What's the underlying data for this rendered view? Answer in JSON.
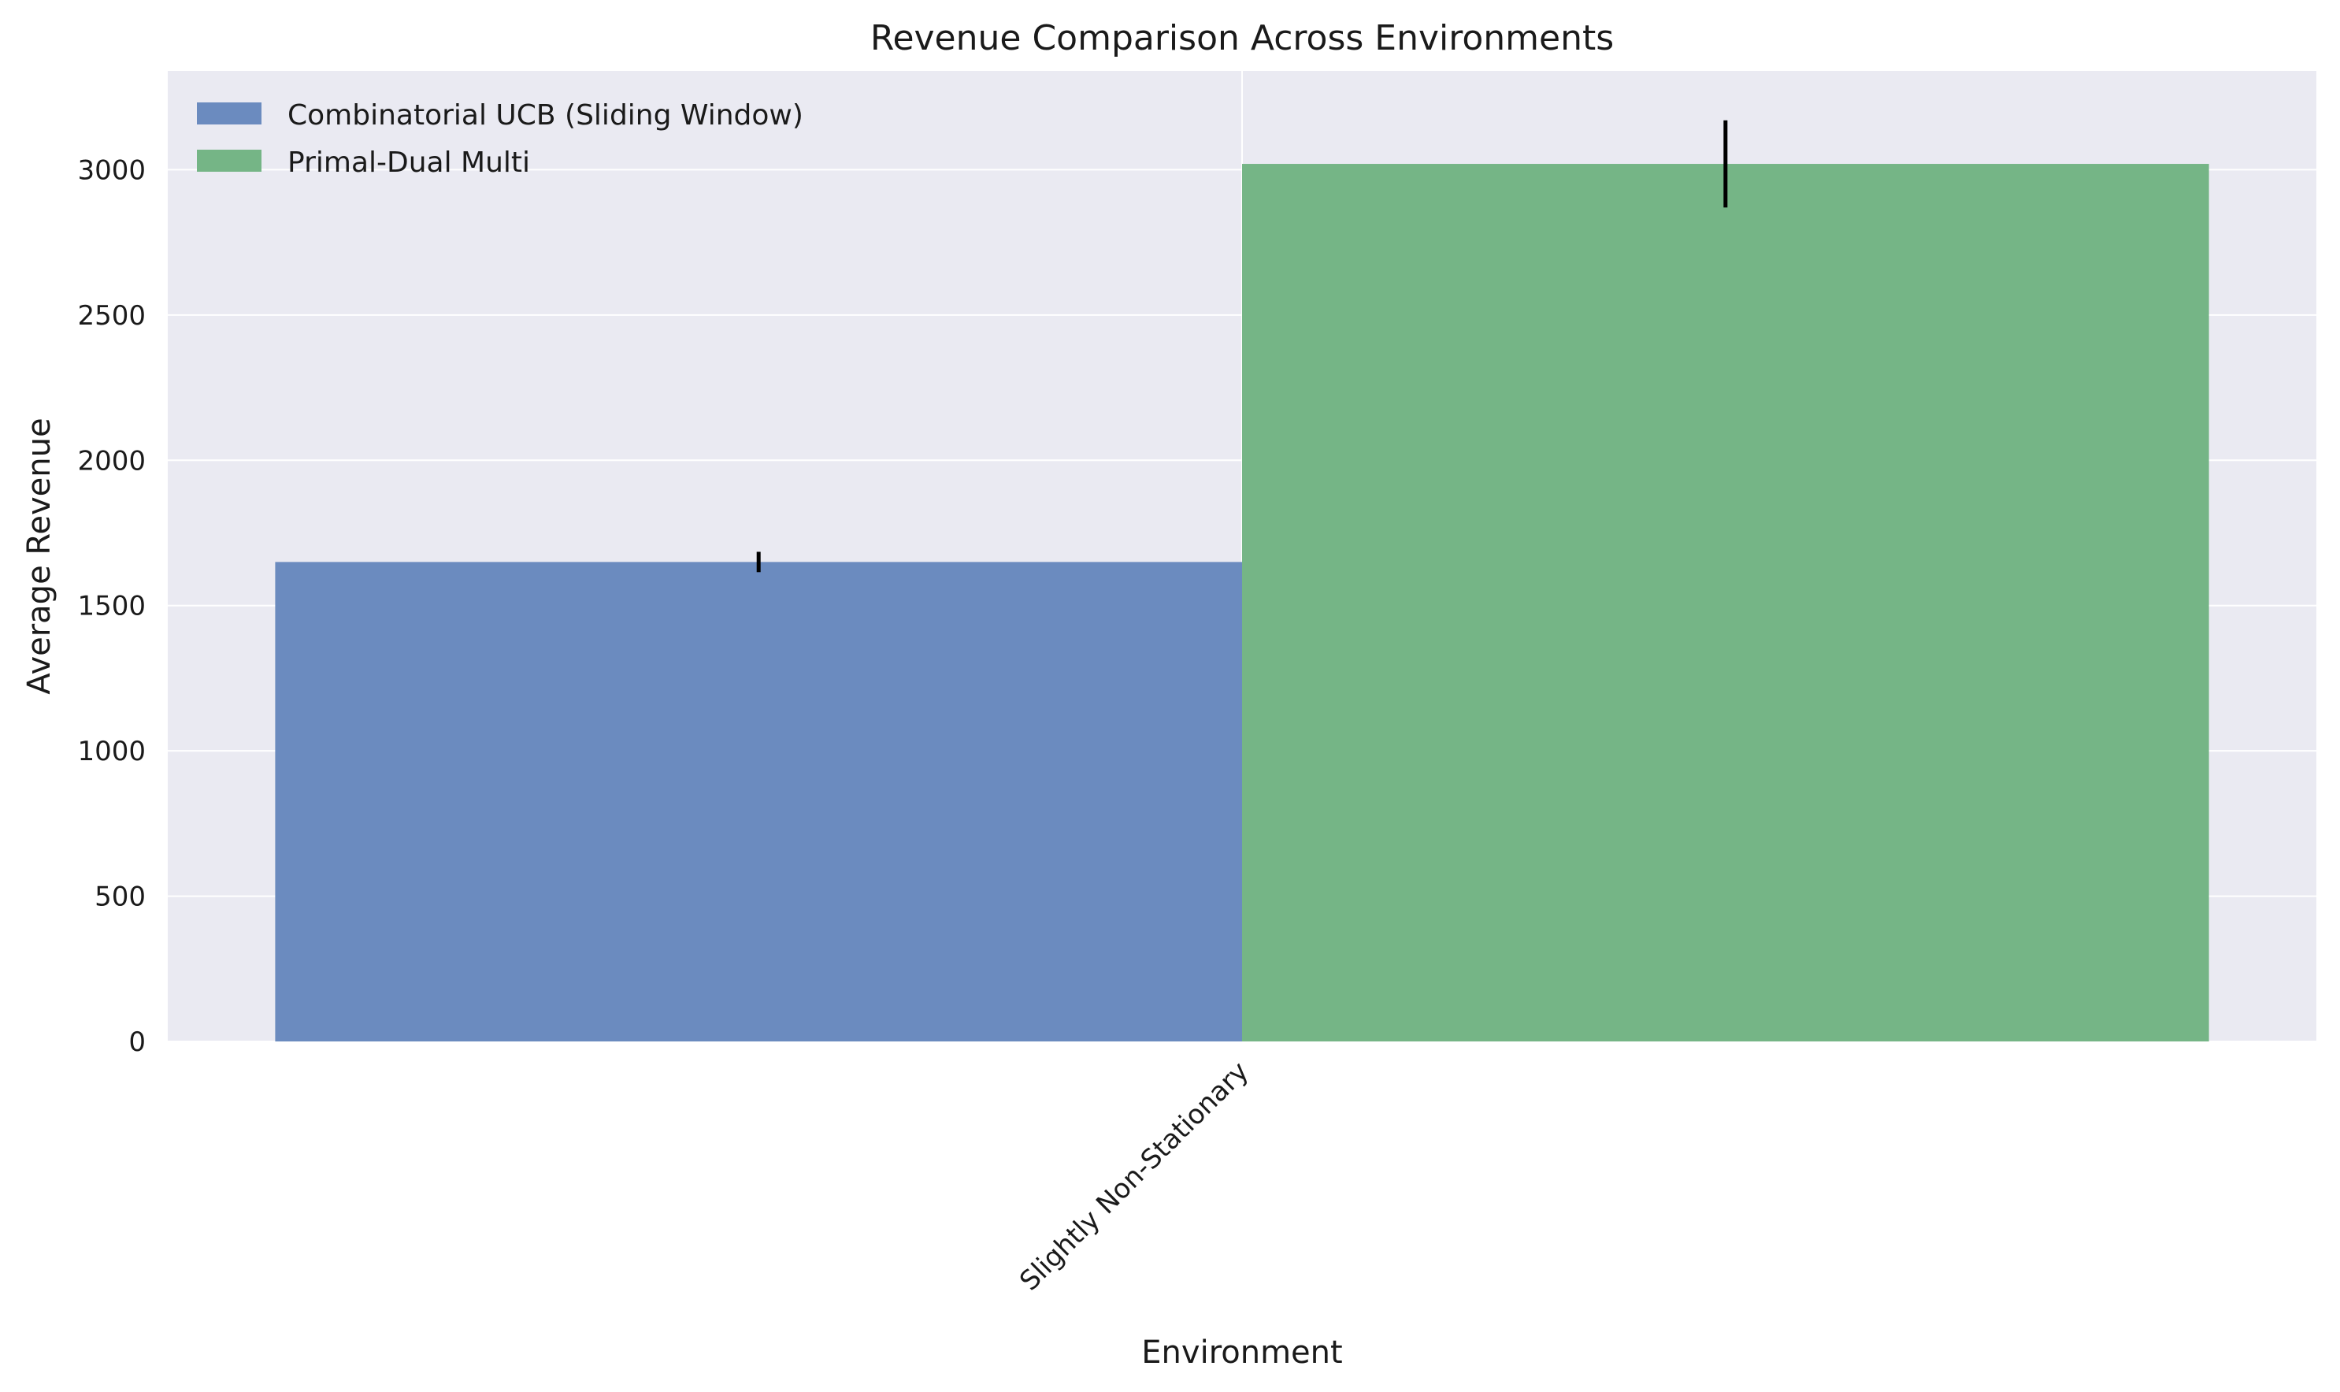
{
  "chart_data": {
    "type": "bar",
    "title": "Revenue Comparison Across Environments",
    "xlabel": "Environment",
    "ylabel": "Average Revenue",
    "categories": [
      "Slightly Non-Stationary"
    ],
    "series": [
      {
        "name": "Combinatorial UCB (Sliding Window)",
        "values": [
          1650
        ],
        "error": [
          35
        ],
        "color": "#6b8bbf"
      },
      {
        "name": "Primal-Dual Multi",
        "values": [
          3020
        ],
        "error": [
          150
        ],
        "color": "#75b586"
      }
    ],
    "yticks": [
      0,
      500,
      1000,
      1500,
      2000,
      2500,
      3000
    ],
    "ylim": [
      0,
      3340
    ],
    "grid": true,
    "legend_position": "top-left",
    "background_color": "#eaeaf2",
    "error_bar_color": "#000000"
  }
}
